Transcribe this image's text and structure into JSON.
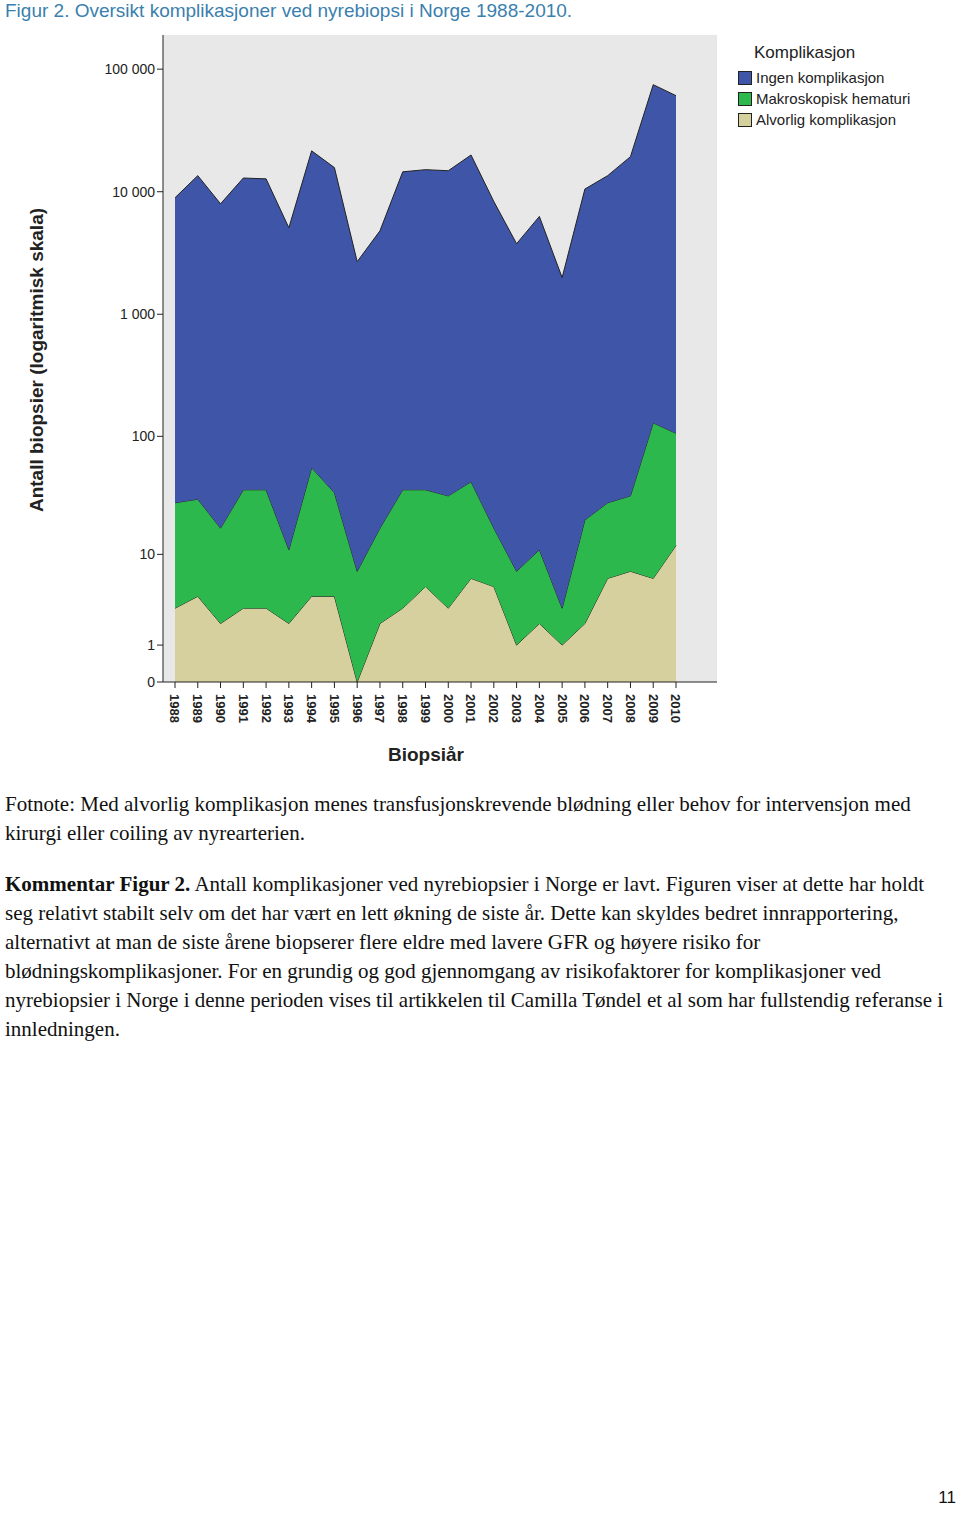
{
  "title": "Figur 2. Oversikt komplikasjoner ved nyrebiopsi i Norge 1988-2010.",
  "chart_data": {
    "type": "area",
    "stacked": true,
    "log": "y",
    "grid": false,
    "legend": "right",
    "legend_title": "Komplikasjon",
    "x_label": "Biopsiår",
    "y_label": "Antall biopsier (logaritmisk skala)",
    "categories": [
      "1988",
      "1989",
      "1990",
      "1991",
      "1992",
      "1993",
      "1994",
      "1995",
      "1996",
      "1997",
      "1998",
      "1999",
      "2000",
      "2001",
      "2002",
      "2003",
      "2004",
      "2005",
      "2006",
      "2007",
      "2008",
      "2009",
      "2010"
    ],
    "series": [
      {
        "name": "Ingen komplikasjon",
        "color": "#3f55a8",
        "values": [
          8900,
          13500,
          7950,
          12900,
          12700,
          5070,
          21500,
          15700,
          2680,
          4780,
          14500,
          15100,
          14800,
          19900,
          8300,
          3760,
          6270,
          1990,
          10500,
          13500,
          19300,
          74600,
          60700
        ]
      },
      {
        "name": "Makroskopisk hematuri",
        "color": "#2db84d",
        "values": [
          25,
          26,
          15,
          33,
          33,
          9,
          51,
          30,
          7,
          15,
          33,
          31,
          29,
          36,
          12,
          6,
          9,
          2,
          18,
          22,
          25,
          123,
          94
        ]
      },
      {
        "name": "Alvorlig komplikasjon",
        "color": "#d6cf9e",
        "values": [
          3,
          4,
          2,
          3,
          3,
          2,
          4,
          4,
          0,
          2,
          3,
          5,
          3,
          6,
          5,
          1,
          2,
          1,
          2,
          6,
          7,
          6,
          12
        ]
      }
    ],
    "ylim": [
      0,
      190000
    ],
    "yticks": [
      0,
      1,
      10,
      100,
      {
        "value": 1000,
        "label": "1 000"
      },
      {
        "value": 10000,
        "label": "10 000"
      },
      {
        "value": 100000,
        "label": "100 000"
      }
    ]
  },
  "footnote": "Fotnote: Med alvorlig komplikasjon menes transfusjonskrevende blødning eller behov for intervensjon med kirurgi eller coiling av nyrearterien.",
  "comment": {
    "label": "Kommentar Figur 2.",
    "text": "Antall komplikasjoner ved nyrebiopsier i Norge er lavt. Figuren viser at dette har holdt seg relativt stabilt selv om det har vært en lett økning de siste år. Dette kan skyldes bedret innrapportering, alternativt at man de siste årene biopserer flere eldre med lavere GFR og høyere risiko for blødningskomplikasjoner. For en grundig og god gjennomgang av risikofaktorer for komplikasjoner ved nyrebiopsier i Norge i denne perioden vises til artikkelen til Camilla Tøndel et al som har fullstendig referanse i innledningen."
  },
  "page_number": 11
}
